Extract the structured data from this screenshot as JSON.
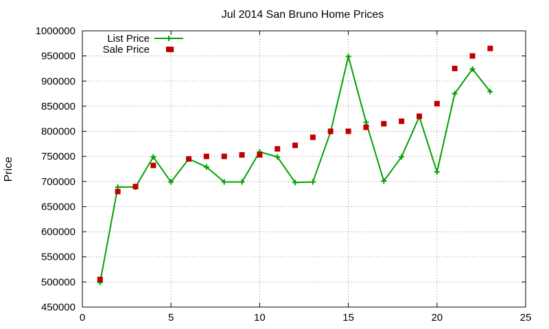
{
  "chart_data": {
    "type": "line",
    "title": "Jul 2014 San Bruno Home Prices",
    "xlabel": "",
    "ylabel": "Price",
    "xlim": [
      0,
      25
    ],
    "ylim": [
      450000,
      1000000
    ],
    "x_ticks": [
      "0",
      "5",
      "10",
      "15",
      "20",
      "25"
    ],
    "y_ticks": [
      "450000",
      "500000",
      "550000",
      "600000",
      "650000",
      "700000",
      "750000",
      "800000",
      "850000",
      "900000",
      "950000",
      "1000000"
    ],
    "grid": true,
    "legend_position": "top-left",
    "series": [
      {
        "name": "List Price",
        "style": "line+plus",
        "color": "#00a000",
        "x": [
          1,
          2,
          3,
          4,
          5,
          6,
          7,
          8,
          9,
          10,
          11,
          12,
          13,
          14,
          15,
          16,
          17,
          18,
          19,
          20,
          21,
          22,
          23
        ],
        "y": [
          499000,
          689000,
          689000,
          749000,
          699000,
          745000,
          729000,
          699000,
          699000,
          759000,
          749000,
          698000,
          699000,
          799000,
          949000,
          818000,
          701000,
          749000,
          829000,
          719000,
          875000,
          924000,
          879000
        ]
      },
      {
        "name": "Sale Price",
        "style": "square",
        "color": "#c00000",
        "x": [
          1,
          2,
          3,
          4,
          5,
          6,
          7,
          8,
          9,
          10,
          11,
          12,
          13,
          14,
          15,
          16,
          17,
          18,
          19,
          20,
          21,
          22,
          23
        ],
        "y": [
          505000,
          680000,
          690000,
          732000,
          963000,
          745000,
          750000,
          750000,
          753000,
          753000,
          765000,
          772000,
          788000,
          800000,
          800000,
          808000,
          815000,
          820000,
          830000,
          855000,
          925000,
          950000,
          965000
        ]
      }
    ]
  }
}
